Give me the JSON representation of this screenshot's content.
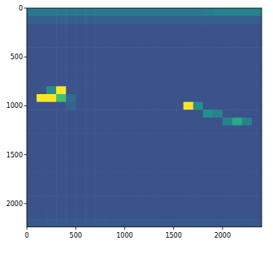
{
  "chart_data": {
    "type": "heatmap",
    "xlim": [
      0,
      2400
    ],
    "ylim": [
      2240,
      0
    ],
    "xticks": [
      0,
      500,
      1000,
      1500,
      2000
    ],
    "yticks": [
      0,
      500,
      1000,
      1500,
      2000
    ],
    "clim": [
      0,
      1
    ],
    "cells": [
      [
        0.4,
        0.4,
        0.4,
        0.4,
        0.4,
        0.4,
        0.4,
        0.4,
        0.4,
        0.4,
        0.4,
        0.4,
        0.4,
        0.4,
        0.4,
        0.4,
        0.4,
        0.4,
        0.42,
        0.44,
        0.45,
        0.45,
        0.45,
        0.45
      ],
      [
        0.3,
        0.3,
        0.3,
        0.3,
        0.3,
        0.3,
        0.3,
        0.3,
        0.3,
        0.3,
        0.3,
        0.3,
        0.3,
        0.3,
        0.3,
        0.3,
        0.3,
        0.3,
        0.3,
        0.3,
        0.3,
        0.3,
        0.3,
        0.3
      ],
      [
        0.25,
        0.25,
        0.25,
        0.25,
        0.25,
        0.25,
        0.25,
        0.25,
        0.25,
        0.25,
        0.25,
        0.25,
        0.25,
        0.25,
        0.25,
        0.25,
        0.25,
        0.25,
        0.25,
        0.25,
        0.25,
        0.25,
        0.25,
        0.25
      ],
      [
        0.25,
        0.25,
        0.25,
        0.25,
        0.25,
        0.25,
        0.25,
        0.25,
        0.25,
        0.25,
        0.25,
        0.25,
        0.25,
        0.25,
        0.25,
        0.25,
        0.25,
        0.25,
        0.25,
        0.25,
        0.25,
        0.25,
        0.25,
        0.25
      ],
      [
        0.25,
        0.25,
        0.25,
        0.25,
        0.25,
        0.25,
        0.25,
        0.25,
        0.25,
        0.25,
        0.25,
        0.25,
        0.25,
        0.25,
        0.25,
        0.25,
        0.25,
        0.25,
        0.25,
        0.25,
        0.25,
        0.25,
        0.25,
        0.25
      ],
      [
        0.25,
        0.25,
        0.25,
        0.25,
        0.25,
        0.25,
        0.25,
        0.25,
        0.25,
        0.25,
        0.25,
        0.25,
        0.25,
        0.25,
        0.25,
        0.25,
        0.25,
        0.25,
        0.25,
        0.25,
        0.25,
        0.25,
        0.25,
        0.25
      ],
      [
        0.25,
        0.25,
        0.25,
        0.25,
        0.25,
        0.25,
        0.25,
        0.25,
        0.25,
        0.25,
        0.25,
        0.25,
        0.25,
        0.25,
        0.25,
        0.25,
        0.25,
        0.25,
        0.25,
        0.25,
        0.25,
        0.25,
        0.25,
        0.25
      ],
      [
        0.25,
        0.25,
        0.25,
        0.25,
        0.25,
        0.25,
        0.25,
        0.25,
        0.25,
        0.25,
        0.25,
        0.25,
        0.25,
        0.25,
        0.25,
        0.25,
        0.25,
        0.25,
        0.25,
        0.25,
        0.25,
        0.25,
        0.25,
        0.25
      ],
      [
        0.25,
        0.25,
        0.25,
        0.25,
        0.25,
        0.25,
        0.25,
        0.25,
        0.25,
        0.25,
        0.25,
        0.25,
        0.25,
        0.25,
        0.25,
        0.25,
        0.25,
        0.25,
        0.25,
        0.25,
        0.25,
        0.25,
        0.25,
        0.25
      ],
      [
        0.25,
        0.25,
        0.25,
        0.25,
        0.25,
        0.25,
        0.25,
        0.25,
        0.25,
        0.25,
        0.25,
        0.25,
        0.25,
        0.25,
        0.25,
        0.25,
        0.25,
        0.25,
        0.25,
        0.25,
        0.25,
        0.25,
        0.25,
        0.25
      ],
      [
        0.25,
        0.25,
        0.5,
        1.0,
        0.25,
        0.25,
        0.25,
        0.25,
        0.25,
        0.25,
        0.25,
        0.25,
        0.25,
        0.25,
        0.25,
        0.25,
        0.25,
        0.25,
        0.25,
        0.25,
        0.25,
        0.25,
        0.25,
        0.25
      ],
      [
        0.25,
        1.0,
        1.0,
        0.7,
        0.35,
        0.25,
        0.25,
        0.25,
        0.25,
        0.25,
        0.25,
        0.25,
        0.25,
        0.25,
        0.25,
        0.25,
        0.25,
        0.25,
        0.25,
        0.25,
        0.25,
        0.25,
        0.25,
        0.25
      ],
      [
        0.25,
        0.25,
        0.25,
        0.25,
        0.32,
        0.25,
        0.25,
        0.25,
        0.25,
        0.25,
        0.25,
        0.25,
        0.25,
        0.25,
        0.25,
        0.25,
        1.0,
        0.5,
        0.25,
        0.25,
        0.25,
        0.25,
        0.25,
        0.25
      ],
      [
        0.25,
        0.25,
        0.25,
        0.25,
        0.25,
        0.25,
        0.25,
        0.25,
        0.25,
        0.25,
        0.25,
        0.25,
        0.25,
        0.25,
        0.25,
        0.25,
        0.25,
        0.25,
        0.5,
        0.45,
        0.25,
        0.25,
        0.25,
        0.25
      ],
      [
        0.25,
        0.25,
        0.25,
        0.25,
        0.25,
        0.25,
        0.25,
        0.25,
        0.25,
        0.25,
        0.25,
        0.25,
        0.25,
        0.25,
        0.25,
        0.25,
        0.25,
        0.25,
        0.25,
        0.25,
        0.45,
        0.6,
        0.45,
        0.25
      ],
      [
        0.25,
        0.25,
        0.25,
        0.25,
        0.25,
        0.25,
        0.25,
        0.25,
        0.25,
        0.25,
        0.25,
        0.25,
        0.25,
        0.25,
        0.25,
        0.25,
        0.25,
        0.25,
        0.25,
        0.25,
        0.25,
        0.25,
        0.25,
        0.25
      ],
      [
        0.25,
        0.25,
        0.25,
        0.25,
        0.25,
        0.25,
        0.25,
        0.25,
        0.25,
        0.25,
        0.25,
        0.25,
        0.25,
        0.25,
        0.25,
        0.25,
        0.25,
        0.25,
        0.25,
        0.25,
        0.25,
        0.25,
        0.25,
        0.25
      ],
      [
        0.25,
        0.25,
        0.25,
        0.25,
        0.25,
        0.25,
        0.25,
        0.25,
        0.25,
        0.25,
        0.25,
        0.25,
        0.25,
        0.25,
        0.25,
        0.25,
        0.25,
        0.25,
        0.25,
        0.25,
        0.25,
        0.25,
        0.25,
        0.25
      ],
      [
        0.25,
        0.25,
        0.25,
        0.25,
        0.25,
        0.25,
        0.25,
        0.25,
        0.25,
        0.25,
        0.25,
        0.25,
        0.25,
        0.25,
        0.25,
        0.25,
        0.25,
        0.25,
        0.25,
        0.25,
        0.25,
        0.25,
        0.25,
        0.25
      ],
      [
        0.25,
        0.25,
        0.25,
        0.25,
        0.25,
        0.25,
        0.25,
        0.25,
        0.25,
        0.25,
        0.25,
        0.25,
        0.25,
        0.25,
        0.25,
        0.25,
        0.25,
        0.25,
        0.25,
        0.25,
        0.25,
        0.25,
        0.25,
        0.25
      ],
      [
        0.25,
        0.25,
        0.25,
        0.25,
        0.25,
        0.25,
        0.25,
        0.25,
        0.25,
        0.25,
        0.25,
        0.25,
        0.25,
        0.25,
        0.25,
        0.25,
        0.25,
        0.25,
        0.25,
        0.25,
        0.25,
        0.25,
        0.25,
        0.25
      ],
      [
        0.25,
        0.25,
        0.25,
        0.25,
        0.25,
        0.25,
        0.25,
        0.25,
        0.25,
        0.25,
        0.25,
        0.25,
        0.25,
        0.25,
        0.25,
        0.25,
        0.25,
        0.25,
        0.25,
        0.25,
        0.25,
        0.25,
        0.25,
        0.25
      ],
      [
        0.25,
        0.25,
        0.25,
        0.25,
        0.25,
        0.25,
        0.25,
        0.25,
        0.25,
        0.25,
        0.25,
        0.25,
        0.25,
        0.25,
        0.25,
        0.25,
        0.25,
        0.25,
        0.25,
        0.25,
        0.25,
        0.25,
        0.25,
        0.25
      ],
      [
        0.25,
        0.25,
        0.25,
        0.25,
        0.25,
        0.25,
        0.25,
        0.25,
        0.25,
        0.25,
        0.25,
        0.25,
        0.25,
        0.25,
        0.25,
        0.25,
        0.25,
        0.25,
        0.25,
        0.25,
        0.25,
        0.25,
        0.25,
        0.25
      ],
      [
        0.25,
        0.25,
        0.25,
        0.25,
        0.25,
        0.25,
        0.25,
        0.25,
        0.25,
        0.25,
        0.25,
        0.25,
        0.25,
        0.25,
        0.25,
        0.25,
        0.25,
        0.25,
        0.25,
        0.25,
        0.25,
        0.25,
        0.25,
        0.25
      ],
      [
        0.25,
        0.25,
        0.25,
        0.25,
        0.25,
        0.25,
        0.25,
        0.25,
        0.25,
        0.25,
        0.25,
        0.25,
        0.25,
        0.25,
        0.25,
        0.25,
        0.25,
        0.25,
        0.25,
        0.25,
        0.25,
        0.25,
        0.25,
        0.25
      ],
      [
        0.26,
        0.26,
        0.26,
        0.26,
        0.26,
        0.26,
        0.26,
        0.26,
        0.26,
        0.26,
        0.26,
        0.26,
        0.26,
        0.26,
        0.26,
        0.26,
        0.26,
        0.26,
        0.26,
        0.26,
        0.26,
        0.26,
        0.26,
        0.26
      ],
      [
        0.27,
        0.27,
        0.27,
        0.27,
        0.27,
        0.27,
        0.27,
        0.27,
        0.27,
        0.27,
        0.27,
        0.27,
        0.27,
        0.27,
        0.27,
        0.27,
        0.27,
        0.27,
        0.27,
        0.27,
        0.27,
        0.27,
        0.27,
        0.27
      ]
    ]
  }
}
